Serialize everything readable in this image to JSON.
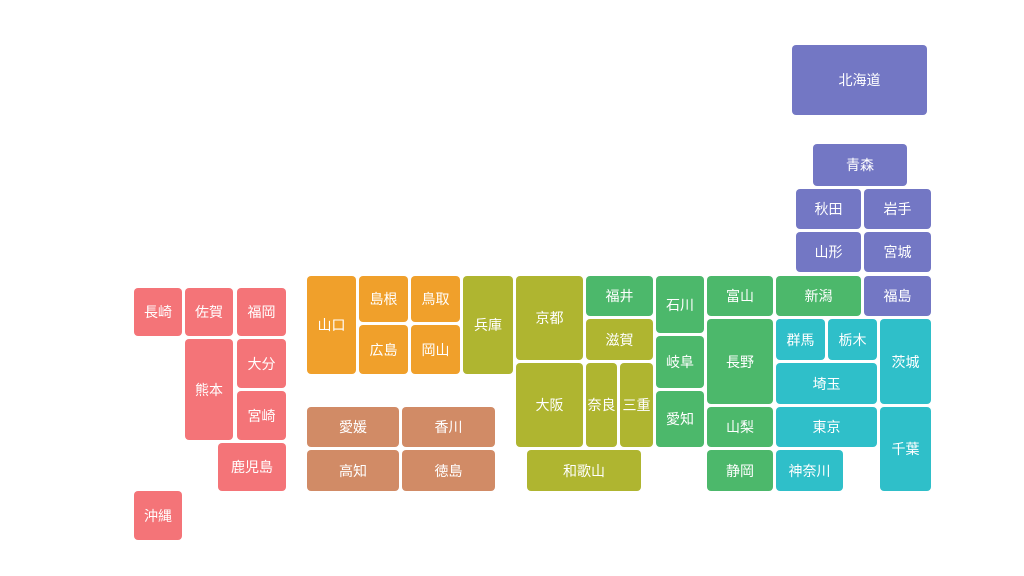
{
  "prefectures": [
    "北海道",
    "青森",
    "秋田",
    "岩手",
    "山形",
    "宮城",
    "福島",
    "新潟",
    "富山",
    "石川",
    "福井",
    "京都",
    "兵庫",
    "鳥取",
    "島根",
    "山口",
    "広島",
    "岡山",
    "滋賀",
    "岐阜",
    "長野",
    "群馬",
    "栃木",
    "茨城",
    "埼玉",
    "大阪",
    "奈良",
    "三重",
    "愛知",
    "山梨",
    "東京",
    "千葉",
    "静岡",
    "神奈川",
    "和歌山",
    "愛媛",
    "香川",
    "高知",
    "徳島",
    "長崎",
    "佐賀",
    "福岡",
    "熊本",
    "大分",
    "宮崎",
    "鹿児島",
    "沖縄"
  ]
}
